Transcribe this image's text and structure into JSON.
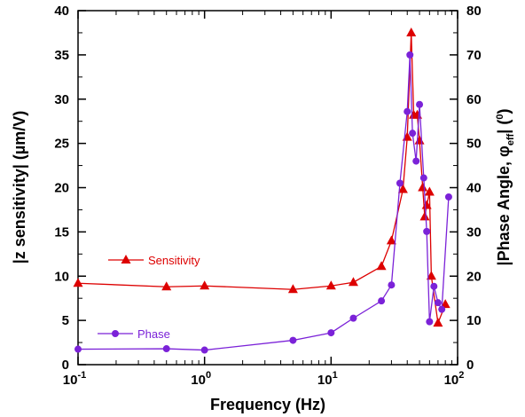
{
  "chart_data": {
    "type": "line",
    "title": "",
    "x": {
      "label": "Frequency (Hz)",
      "scale": "log",
      "range": [
        0.1,
        100
      ],
      "ticks": [
        {
          "value": 0.1,
          "base": "10",
          "exp": "-1"
        },
        {
          "value": 1,
          "base": "10",
          "exp": "0"
        },
        {
          "value": 10,
          "base": "10",
          "exp": "1"
        },
        {
          "value": 100,
          "base": "10",
          "exp": "2"
        }
      ]
    },
    "y_left": {
      "label": "|z sensitivity| (µm/V)",
      "range": [
        0,
        40
      ],
      "ticks": [
        "0",
        "5",
        "10",
        "15",
        "20",
        "25",
        "30",
        "35",
        "40"
      ]
    },
    "y_right": {
      "label_prefix": "|Phase Angle, ",
      "label_phi": "φ",
      "label_sub": "eff",
      "label_mid": "| (",
      "label_sup": "0",
      "label_end": ")",
      "range": [
        0,
        80
      ],
      "ticks": [
        "0",
        "10",
        "20",
        "30",
        "40",
        "50",
        "60",
        "70",
        "80"
      ]
    },
    "grid": false,
    "legend_placement": "left",
    "series": [
      {
        "name": "Sensitivity",
        "axis": "left",
        "marker": "triangle",
        "color": "#dd0000",
        "points": [
          [
            0.1,
            9.2
          ],
          [
            0.5,
            8.8
          ],
          [
            1,
            8.9
          ],
          [
            5,
            8.5
          ],
          [
            10,
            8.9
          ],
          [
            15,
            9.3
          ],
          [
            25,
            11.1
          ],
          [
            30,
            14.0
          ],
          [
            37,
            19.8
          ],
          [
            40,
            25.7
          ],
          [
            43,
            37.5
          ],
          [
            45,
            28.2
          ],
          [
            48,
            28.2
          ],
          [
            50,
            25.3
          ],
          [
            53,
            20.0
          ],
          [
            55,
            16.7
          ],
          [
            57,
            18.0
          ],
          [
            60,
            19.5
          ],
          [
            62,
            10.0
          ],
          [
            70,
            4.7
          ],
          [
            80,
            6.8
          ]
        ]
      },
      {
        "name": "Phase",
        "axis": "right",
        "marker": "circle",
        "color": "#7b22d8",
        "points": [
          [
            0.1,
            3.5
          ],
          [
            0.5,
            3.6
          ],
          [
            1,
            3.3
          ],
          [
            5,
            5.5
          ],
          [
            10,
            7.2
          ],
          [
            15,
            10.5
          ],
          [
            25,
            14.4
          ],
          [
            30,
            18.0
          ],
          [
            35,
            41.0
          ],
          [
            40,
            57.2
          ],
          [
            42,
            70.0
          ],
          [
            44,
            52.3
          ],
          [
            47,
            46.0
          ],
          [
            50,
            58.8
          ],
          [
            54,
            42.2
          ],
          [
            57,
            30.1
          ],
          [
            60,
            9.7
          ],
          [
            65,
            17.7
          ],
          [
            70,
            14.0
          ],
          [
            75,
            12.5
          ],
          [
            85,
            37.9
          ]
        ]
      }
    ]
  }
}
